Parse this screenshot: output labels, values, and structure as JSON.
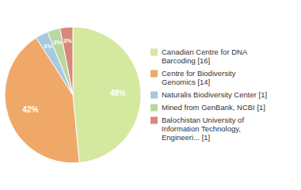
{
  "chart_data": {
    "type": "pie",
    "categories": [
      "Canadian Centre for DNA\nBarcoding [16]",
      "Centre for Biodiversity\nGenomics [14]",
      "Naturalis Biodiversity Center [1]",
      "Mined from GenBank, NCBI [1]",
      "Balochistan University of\nInformation Technology,\nEngineeri... [1]"
    ],
    "values": [
      48,
      42,
      3,
      3,
      3
    ],
    "value_labels": [
      "48%",
      "42%",
      "3%",
      "3%",
      "3%"
    ],
    "colors": [
      "#d4e8a0",
      "#f0a868",
      "#a8c8e0",
      "#b8d8a0",
      "#d88878"
    ],
    "data_labels": true,
    "legend": "right"
  }
}
